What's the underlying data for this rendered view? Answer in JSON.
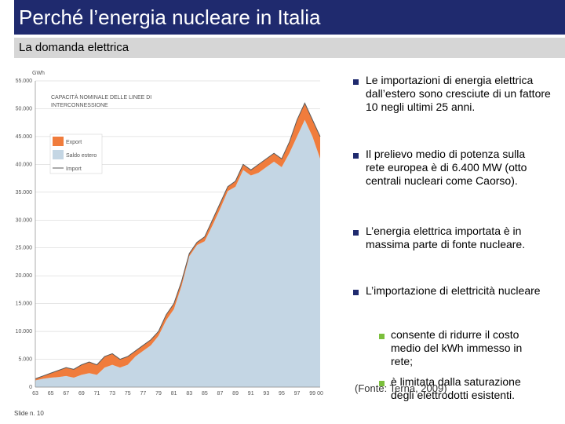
{
  "slide": {
    "title": "Perché l’energia nucleare in Italia",
    "subtitle": "La domanda elettrica",
    "bullets": [
      "Le importazioni di energia elettrica dall’estero sono cresciute di un fattore 10 negli ultimi 25 anni.",
      "Il prelievo medio di potenza sulla rete europea è di 6.400 MW (otto centrali nucleari come Caorso).",
      "L’energia elettrica importata è in massima parte di fonte nucleare.",
      "L’importazione di elettricità nucleare"
    ],
    "sub_bullets": [
      "consente di ridurre il costo medio del kWh immesso in rete;",
      "è limitata dalla saturazione degli elettrodotti esistenti."
    ],
    "source": "(Fonte: Terna, 2009)",
    "slide_number": "Slide n. 10"
  },
  "chart_data": {
    "type": "stacked-area",
    "y_label": "GWh",
    "annotation": "CAPACITÀ NOMINALE DELLE LINEE DI INTERCONNESSIONE",
    "categories": [
      "63",
      null,
      "65",
      null,
      "67",
      null,
      "69",
      null,
      "71",
      null,
      "73",
      null,
      "75",
      null,
      "77",
      null,
      "79",
      null,
      "81",
      null,
      "83",
      null,
      "85",
      null,
      "87",
      null,
      "89",
      null,
      "91",
      null,
      "93",
      null,
      "95",
      null,
      "97",
      null,
      "99",
      "00"
    ],
    "series": [
      {
        "name": "Export",
        "color": "#f07c3c",
        "stack": true,
        "values": [
          300,
          500,
          800,
          1200,
          1500,
          1500,
          1800,
          2000,
          1800,
          2000,
          2000,
          1500,
          1500,
          1000,
          1000,
          1000,
          800,
          1000,
          1000,
          800,
          500,
          500,
          800,
          1000,
          1000,
          800,
          1000,
          1000,
          1000,
          1500,
          1500,
          1500,
          1500,
          2000,
          3000,
          3000,
          3000,
          4000
        ]
      },
      {
        "name": "Saldo estero",
        "color": "#c4d6e4",
        "stack": true,
        "values": [
          1200,
          1500,
          1700,
          1800,
          2000,
          1700,
          2200,
          2500,
          2200,
          3500,
          4000,
          3500,
          4000,
          5500,
          6500,
          7500,
          9200,
          12000,
          14000,
          18200,
          23500,
          25500,
          26200,
          29000,
          32000,
          35200,
          36000,
          39000,
          38000,
          38500,
          39500,
          40500,
          39500,
          42000,
          45000,
          48000,
          45000,
          41000
        ]
      },
      {
        "name": "Import",
        "color": "#5a5a5a",
        "stack": false,
        "values": [
          1500,
          2000,
          2500,
          3000,
          3500,
          3200,
          4000,
          4500,
          4000,
          5500,
          6000,
          5000,
          5500,
          6500,
          7500,
          8500,
          10000,
          13000,
          15000,
          19000,
          24000,
          26000,
          27000,
          30000,
          33000,
          36000,
          37000,
          40000,
          39000,
          40000,
          41000,
          42000,
          41000,
          44000,
          48000,
          51000,
          48000,
          45000
        ]
      }
    ],
    "ylim": [
      0,
      55000
    ],
    "yticks": [
      0,
      {
        "value": 5000,
        "label": "5.000"
      },
      {
        "value": 10000,
        "label": "10.000"
      },
      {
        "value": 15000,
        "label": "15.000"
      },
      {
        "value": 20000,
        "label": "20.000"
      },
      {
        "value": 25000,
        "label": "25.000"
      },
      {
        "value": 30000,
        "label": "30.000"
      },
      {
        "value": 35000,
        "label": "35.000"
      },
      {
        "value": 40000,
        "label": "40.000"
      },
      {
        "value": 45000,
        "label": "45.000"
      },
      {
        "value": 50000,
        "label": "50.000"
      },
      {
        "value": 55000,
        "label": "55.000"
      }
    ],
    "grid": true
  }
}
